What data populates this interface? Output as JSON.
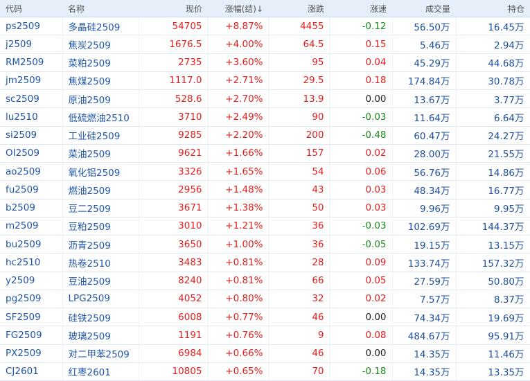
{
  "table": {
    "header": [
      "代码",
      "名称",
      "现价",
      "涨幅(结)↓",
      "涨跌",
      "涨速",
      "成交量",
      "持仓"
    ],
    "rows": [
      [
        "ps2509",
        "多晶硅2509",
        "54705",
        "+8.87%",
        "4455",
        "-0.12",
        "56.50万",
        "16.45万"
      ],
      [
        "j2509",
        "焦炭2509",
        "1676.5",
        "+4.00%",
        "64.5",
        "0.15",
        "5.46万",
        "2.94万"
      ],
      [
        "RM2509",
        "菜粕2509",
        "2735",
        "+3.60%",
        "95",
        "0.04",
        "45.29万",
        "44.68万"
      ],
      [
        "jm2509",
        "焦煤2509",
        "1117.0",
        "+2.71%",
        "29.5",
        "0.18",
        "174.84万",
        "30.78万"
      ],
      [
        "sc2509",
        "原油2509",
        "528.6",
        "+2.70%",
        "13.9",
        "0.00",
        "13.67万",
        "3.77万"
      ],
      [
        "lu2510",
        "低硫燃油2510",
        "3710",
        "+2.49%",
        "90",
        "-0.03",
        "11.64万",
        "6.64万"
      ],
      [
        "si2509",
        "工业硅2509",
        "9285",
        "+2.20%",
        "200",
        "-0.48",
        "60.47万",
        "24.27万"
      ],
      [
        "OI2509",
        "菜油2509",
        "9621",
        "+1.66%",
        "157",
        "0.02",
        "28.00万",
        "21.55万"
      ],
      [
        "ao2509",
        "氧化铝2509",
        "3326",
        "+1.65%",
        "54",
        "0.06",
        "56.76万",
        "14.86万"
      ],
      [
        "fu2509",
        "燃油2509",
        "2956",
        "+1.48%",
        "43",
        "0.03",
        "48.34万",
        "16.77万"
      ],
      [
        "b2509",
        "豆二2509",
        "3671",
        "+1.38%",
        "50",
        "0.03",
        "9.96万",
        "9.95万"
      ],
      [
        "m2509",
        "豆粕2509",
        "3010",
        "+1.21%",
        "36",
        "-0.03",
        "102.69万",
        "144.37万"
      ],
      [
        "bu2509",
        "沥青2509",
        "3650",
        "+1.00%",
        "36",
        "-0.05",
        "19.15万",
        "13.15万"
      ],
      [
        "hc2510",
        "热卷2510",
        "3483",
        "+0.81%",
        "28",
        "0.09",
        "133.74万",
        "157.32万"
      ],
      [
        "y2509",
        "豆油2509",
        "8240",
        "+0.81%",
        "66",
        "0.05",
        "27.59万",
        "50.80万"
      ],
      [
        "pg2509",
        "LPG2509",
        "4052",
        "+0.80%",
        "32",
        "0.02",
        "7.57万",
        "8.37万"
      ],
      [
        "SF2509",
        "硅铁2509",
        "6008",
        "+0.77%",
        "46",
        "0.00",
        "74.34万",
        "19.69万"
      ],
      [
        "FG2509",
        "玻璃2509",
        "1191",
        "+0.76%",
        "9",
        "0.08",
        "484.67万",
        "95.91万"
      ],
      [
        "PX2509",
        "对二甲苯2509",
        "6984",
        "+0.66%",
        "46",
        "0.00",
        "14.35万",
        "11.46万"
      ],
      [
        "CJ2601",
        "红枣2601",
        "10805",
        "+0.65%",
        "70",
        "-0.18",
        "14.35万",
        "13.35万"
      ]
    ]
  }
}
